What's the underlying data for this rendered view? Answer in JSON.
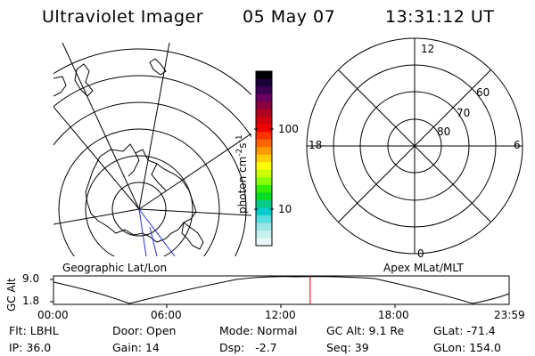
{
  "header": {
    "title": "Ultraviolet Imager",
    "date": "05 May 07",
    "time": "13:31:12 UT"
  },
  "colorbar": {
    "label": "photon cm",
    "exp1": "-2",
    "label_s": "s",
    "exp2": "-1",
    "ticks": [
      "100",
      "10"
    ],
    "colors": [
      "#000000",
      "#1a0038",
      "#3a0052",
      "#6a0060",
      "#8a0040",
      "#b00020",
      "#d00010",
      "#f00000",
      "#ff3300",
      "#ff6600",
      "#ff9900",
      "#ffcc00",
      "#ffff00",
      "#ccff00",
      "#88ff00",
      "#33ee00",
      "#00dd22",
      "#00cc88",
      "#00cccc",
      "#55dddd",
      "#99e6e6",
      "#c8f0f0",
      "#e8f8f8"
    ]
  },
  "left_map": {
    "label": "Geographic Lat/Lon"
  },
  "right_polar": {
    "label": "Apex MLat/MLT",
    "mlt_labels": {
      "top": "12",
      "left": "18",
      "right": "6",
      "bottom": "0"
    },
    "lat_labels": [
      "60",
      "70",
      "80"
    ]
  },
  "orbit": {
    "ylabel": "GC Alt",
    "yticks": [
      "9.0",
      "1.8"
    ],
    "xticks": [
      "00:00",
      "06:00",
      "12:00",
      "18:00",
      "23:59"
    ],
    "current_time_fraction": 0.5633,
    "marker_color": "#cc0000"
  },
  "status": {
    "flt_label": "Flt:",
    "flt": "LBHL",
    "ip_label": "IP:",
    "ip": "36.0",
    "door_label": "Door:",
    "door": "Open",
    "gain_label": "Gain:",
    "gain": "14",
    "mode_label": "Mode:",
    "mode": "Normal",
    "dsp_label": "Dsp:",
    "dsp": "-2.7",
    "gcalt_label": "GC Alt:",
    "gcalt": "9.1 Re",
    "seq_label": "Seq:",
    "seq": "39",
    "glat_label": "GLat:",
    "glat": "-71.4",
    "glon_label": "GLon:",
    "glon": "154.0"
  }
}
